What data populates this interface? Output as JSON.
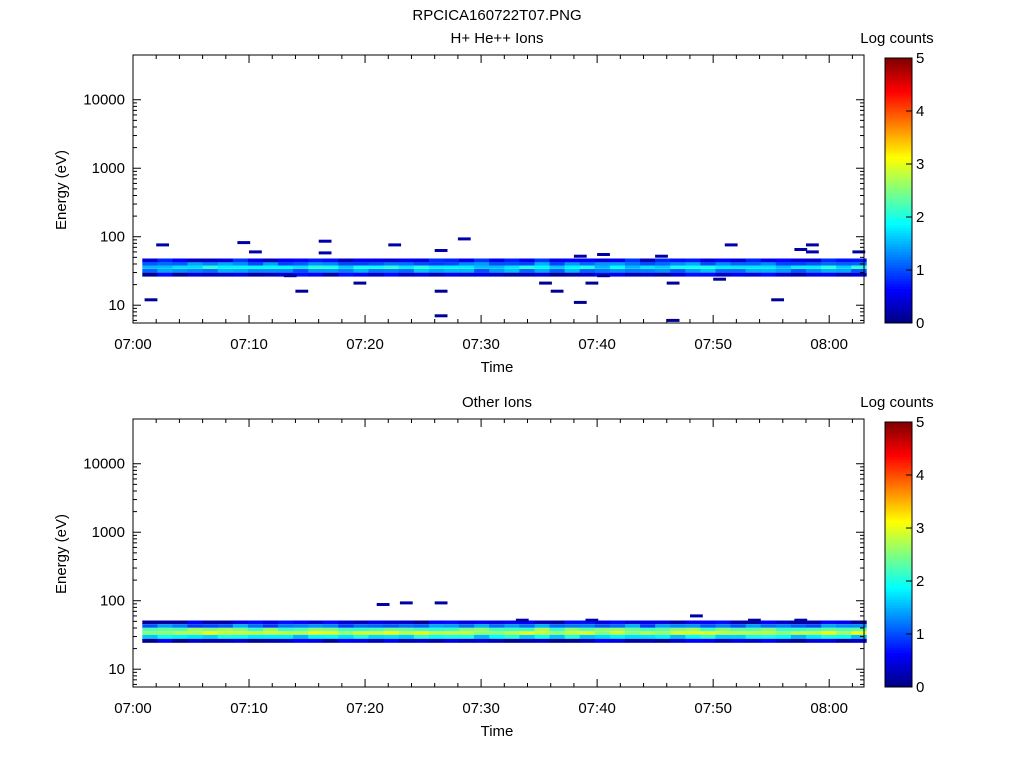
{
  "title": "RPCICA160722T07.PNG",
  "colors": {
    "axis": "#000000",
    "background": "#ffffff",
    "colormap": "jet"
  },
  "chart_data": [
    {
      "type": "heatmap",
      "title": "H+ He++ Ions",
      "xlabel": "Time",
      "ylabel": "Energy (eV)",
      "x_ticks": [
        "07:00",
        "07:10",
        "07:20",
        "07:30",
        "07:40",
        "07:50",
        "08:00"
      ],
      "y_ticks": [
        "10",
        "100",
        "1000",
        "10000"
      ],
      "y_scale": "log",
      "xlim": [
        "07:00",
        "08:03"
      ],
      "ylim": [
        5.5,
        45000
      ],
      "colorbar": {
        "label": "Log counts",
        "ticks": [
          "0",
          "1",
          "2",
          "3",
          "4",
          "5"
        ],
        "range": [
          0,
          5
        ]
      },
      "band": {
        "energies_eV": [
          28,
          32,
          36,
          40,
          45
        ],
        "levels": [
          0.4,
          1.3,
          1.8,
          1.2,
          0.6
        ]
      },
      "sporadic": [
        {
          "t": "07:01",
          "e": 12,
          "v": 0.1
        },
        {
          "t": "07:02",
          "e": 76,
          "v": 0.2
        },
        {
          "t": "07:09",
          "e": 82,
          "v": 0.2
        },
        {
          "t": "07:10",
          "e": 60,
          "v": 0.2
        },
        {
          "t": "07:13",
          "e": 27,
          "v": 0.2
        },
        {
          "t": "07:14",
          "e": 16,
          "v": 0.1
        },
        {
          "t": "07:16",
          "e": 86,
          "v": 0.2
        },
        {
          "t": "07:16",
          "e": 58,
          "v": 0.2
        },
        {
          "t": "07:19",
          "e": 21,
          "v": 0.1
        },
        {
          "t": "07:22",
          "e": 76,
          "v": 0.2
        },
        {
          "t": "07:26",
          "e": 63,
          "v": 0.2
        },
        {
          "t": "07:26",
          "e": 16,
          "v": 0.1
        },
        {
          "t": "07:26",
          "e": 7,
          "v": 0.1
        },
        {
          "t": "07:28",
          "e": 93,
          "v": 0.2
        },
        {
          "t": "07:35",
          "e": 21,
          "v": 0.1
        },
        {
          "t": "07:36",
          "e": 16,
          "v": 0.1
        },
        {
          "t": "07:38",
          "e": 52,
          "v": 0.2
        },
        {
          "t": "07:38",
          "e": 11,
          "v": 0.1
        },
        {
          "t": "07:39",
          "e": 21,
          "v": 0.1
        },
        {
          "t": "07:40",
          "e": 55,
          "v": 0.2
        },
        {
          "t": "07:40",
          "e": 27,
          "v": 0.1
        },
        {
          "t": "07:45",
          "e": 52,
          "v": 0.2
        },
        {
          "t": "07:46",
          "e": 21,
          "v": 0.1
        },
        {
          "t": "07:46",
          "e": 6,
          "v": 0.1
        },
        {
          "t": "07:50",
          "e": 24,
          "v": 0.1
        },
        {
          "t": "07:51",
          "e": 76,
          "v": 0.2
        },
        {
          "t": "07:55",
          "e": 12,
          "v": 0.1
        },
        {
          "t": "07:57",
          "e": 65,
          "v": 0.2
        },
        {
          "t": "07:58",
          "e": 76,
          "v": 0.2
        },
        {
          "t": "07:58",
          "e": 60,
          "v": 0.2
        },
        {
          "t": "08:02",
          "e": 60,
          "v": 0.2
        }
      ]
    },
    {
      "type": "heatmap",
      "title": "Other Ions",
      "xlabel": "Time",
      "ylabel": "Energy (eV)",
      "x_ticks": [
        "07:00",
        "07:10",
        "07:20",
        "07:30",
        "07:40",
        "07:50",
        "08:00"
      ],
      "y_ticks": [
        "10",
        "100",
        "1000",
        "10000"
      ],
      "y_scale": "log",
      "xlim": [
        "07:00",
        "08:03"
      ],
      "ylim": [
        5.5,
        45000
      ],
      "colorbar": {
        "label": "Log counts",
        "ticks": [
          "0",
          "1",
          "2",
          "3",
          "4",
          "5"
        ],
        "range": [
          0,
          5
        ]
      },
      "band": {
        "energies_eV": [
          26,
          30,
          34,
          38,
          43,
          48
        ],
        "levels": [
          0.3,
          1.8,
          2.8,
          2.4,
          1.2,
          0.4
        ]
      },
      "sporadic": [
        {
          "t": "07:21",
          "e": 88,
          "v": 0.2
        },
        {
          "t": "07:23",
          "e": 93,
          "v": 0.2
        },
        {
          "t": "07:26",
          "e": 93,
          "v": 0.2
        },
        {
          "t": "07:33",
          "e": 52,
          "v": 0.2
        },
        {
          "t": "07:39",
          "e": 52,
          "v": 0.2
        },
        {
          "t": "07:48",
          "e": 60,
          "v": 0.2
        },
        {
          "t": "07:53",
          "e": 52,
          "v": 0.2
        },
        {
          "t": "07:57",
          "e": 52,
          "v": 0.2
        }
      ]
    }
  ]
}
